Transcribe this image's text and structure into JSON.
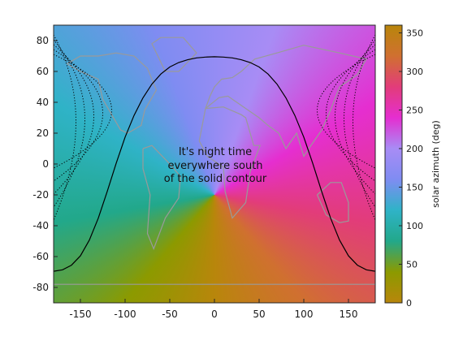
{
  "chart_data": {
    "type": "heatmap",
    "x_range": [
      -180,
      180
    ],
    "y_range": [
      -90,
      90
    ],
    "x_ticks": [
      -150,
      -100,
      -50,
      0,
      50,
      100,
      150
    ],
    "y_ticks": [
      -80,
      -60,
      -40,
      -20,
      0,
      20,
      40,
      60,
      80
    ],
    "colorbar": {
      "label": "solar azimuth (deg)",
      "range": [
        0,
        360
      ],
      "ticks": [
        0,
        50,
        100,
        150,
        200,
        250,
        300,
        350
      ],
      "stops": [
        "#b8860b",
        "#8c9a00",
        "#22a88a",
        "#2fb3c7",
        "#7f8cf2",
        "#a88cf5",
        "#e52ed0",
        "#e23c7a",
        "#d07030",
        "#b8860b"
      ]
    },
    "subsolar_point": {
      "lon": 0,
      "lat": -20
    },
    "night_contour_solid": [
      [
        -180,
        -69.5
      ],
      [
        -170,
        -68.6
      ],
      [
        -160,
        -65.6
      ],
      [
        -150,
        -59.5
      ],
      [
        -140,
        -49.3
      ],
      [
        -130,
        -35.1
      ],
      [
        -120,
        -17.8
      ],
      [
        -110,
        0.4
      ],
      [
        -100,
        17.4
      ],
      [
        -90,
        31.5
      ],
      [
        -80,
        42.9
      ],
      [
        -70,
        51.8
      ],
      [
        -60,
        58.3
      ],
      [
        -50,
        62.9
      ],
      [
        -40,
        65.8
      ],
      [
        -30,
        67.6
      ],
      [
        -20,
        68.8
      ],
      [
        -10,
        69.3
      ],
      [
        0,
        69.5
      ],
      [
        10,
        69.3
      ],
      [
        20,
        68.8
      ],
      [
        30,
        67.6
      ],
      [
        40,
        65.8
      ],
      [
        50,
        62.9
      ],
      [
        60,
        58.3
      ],
      [
        70,
        51.8
      ],
      [
        80,
        42.9
      ],
      [
        90,
        31.5
      ],
      [
        100,
        17.4
      ],
      [
        110,
        0.4
      ],
      [
        120,
        -17.8
      ],
      [
        130,
        -35.1
      ],
      [
        140,
        -49.3
      ],
      [
        150,
        -59.5
      ],
      [
        160,
        -65.6
      ],
      [
        170,
        -68.6
      ],
      [
        180,
        -69.5
      ]
    ],
    "annotation": [
      "It's night time",
      "everywhere south",
      "of the solid contour"
    ],
    "grid": false,
    "colors": {
      "coastline": "#9a9a9a",
      "contour": "#000000"
    }
  }
}
